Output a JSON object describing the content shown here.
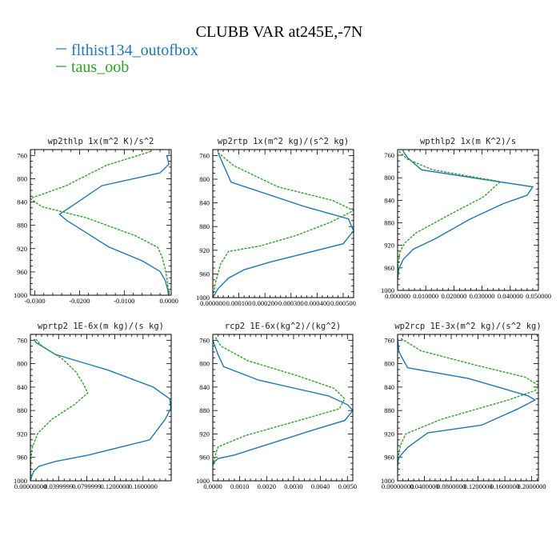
{
  "header": {
    "title": "CLUBB VAR at245E,-7N",
    "legend": [
      {
        "label": "flthist134_outofbox",
        "color": "#1f77b4",
        "dash": false
      },
      {
        "label": "taus_oob",
        "color": "#2ca02c",
        "dash": true
      }
    ]
  },
  "chart_data": [
    {
      "type": "line",
      "title": "wp2thlp  1x(m^2 K)/s^2",
      "xlim": [
        -0.031,
        0.0005
      ],
      "ylim": [
        1000,
        750
      ],
      "xticks": [
        -0.03,
        -0.02,
        -0.01,
        0.0
      ],
      "xticklabels": [
        "-0.0300",
        "-0.0200",
        "-0.0100",
        "0.0000"
      ],
      "yticks": [
        760,
        800,
        840,
        880,
        920,
        960,
        1000
      ],
      "yticklabels": [
        "760",
        "800",
        "840",
        "880",
        "920",
        "960",
        "1000"
      ],
      "series": [
        {
          "name": "flthist134_outofbox",
          "x": [
            -0.0005,
            0.0,
            -0.002,
            -0.015,
            -0.0225,
            -0.0245,
            -0.0228,
            -0.0205,
            -0.0135,
            -0.006,
            -0.002,
            -0.0008,
            -0.0003,
            -0.0001
          ],
          "y": [
            760,
            775,
            790,
            812,
            851,
            861,
            872,
            883,
            917,
            941,
            959,
            975,
            990,
            1000
          ]
        },
        {
          "name": "taus_oob",
          "x": [
            -0.004,
            -0.014,
            -0.023,
            -0.031,
            -0.0285,
            -0.0185,
            -0.0075,
            -0.0025,
            -0.0015,
            -0.0008,
            -0.0003,
            -0.0001
          ],
          "y": [
            753,
            777,
            812,
            834,
            848,
            867,
            898,
            918,
            935,
            956,
            978,
            1000
          ]
        }
      ]
    },
    {
      "type": "line",
      "title": "wp2rtp  1x(m^2 kg)/(s^2 kg)",
      "xlim": [
        0.0,
        0.00054
      ],
      "ylim": [
        1000,
        750
      ],
      "xticks": [
        0.0,
        0.0001,
        0.0002,
        0.0003,
        0.0004,
        0.0005
      ],
      "xticklabels": [
        "0.000000",
        "0.000100",
        "0.000200",
        "0.000300",
        "0.000400",
        "0.000500"
      ],
      "yticks": [
        760,
        800,
        840,
        880,
        920,
        960,
        1000
      ],
      "yticklabels": [
        "760",
        "800",
        "840",
        "880",
        "920",
        "960",
        "1000"
      ],
      "series": [
        {
          "name": "flthist134_outofbox",
          "x": [
            2e-05,
            4e-05,
            7e-05,
            0.00035,
            0.00052,
            0.00054,
            0.0005,
            0.00022,
            0.00012,
            6e-05,
            2e-05,
            0.0
          ],
          "y": [
            755,
            775,
            805,
            846,
            867,
            887,
            909,
            940,
            953,
            967,
            985,
            1000
          ]
        },
        {
          "name": "taus_oob",
          "x": [
            2e-05,
            8e-05,
            0.00025,
            0.00046,
            0.00054,
            0.00045,
            0.00032,
            0.00018,
            6e-05,
            3e-05,
            1e-05,
            0.0
          ],
          "y": [
            755,
            777,
            813,
            836,
            853,
            873,
            895,
            913,
            922,
            943,
            975,
            1000
          ]
        }
      ]
    },
    {
      "type": "line",
      "title": "wpthlp2  1x(m K^2)/s",
      "xlim": [
        0.0,
        0.05
      ],
      "ylim": [
        1000,
        750
      ],
      "xticks": [
        0.0,
        0.01,
        0.02,
        0.03,
        0.04,
        0.05
      ],
      "xticklabels": [
        "0.000000",
        "0.010000",
        "0.020000",
        "0.030000",
        "0.040000",
        "0.050000"
      ],
      "yticks": [
        760,
        800,
        840,
        880,
        920,
        960,
        1000
      ],
      "yticklabels": [
        "760",
        "800",
        "840",
        "880",
        "920",
        "960",
        "1000"
      ],
      "series": [
        {
          "name": "flthist134_outofbox",
          "x": [
            0.002,
            0.0035,
            0.0085,
            0.0305,
            0.048,
            0.046,
            0.0375,
            0.0255,
            0.0135,
            0.0055,
            0.002,
            0.0005,
            0.0
          ],
          "y": [
            753,
            764,
            786,
            803,
            816,
            831,
            846,
            874,
            908,
            927,
            945,
            961,
            980
          ]
        },
        {
          "name": "taus_oob",
          "x": [
            0.0005,
            0.0035,
            0.0125,
            0.0365,
            0.0305,
            0.0175,
            0.0065,
            0.0025,
            0.0008,
            0.0002,
            0.0
          ],
          "y": [
            753,
            767,
            786,
            807,
            834,
            868,
            898,
            916,
            932,
            955,
            980
          ]
        }
      ]
    },
    {
      "type": "line",
      "title": "wprtp2  1E-6x(m kg)/(s kg)",
      "xlim": [
        0.0,
        0.2
      ],
      "ylim": [
        1000,
        750
      ],
      "xticks": [
        0.0,
        0.04,
        0.08,
        0.12,
        0.16
      ],
      "xticklabels": [
        "0.00000000",
        "0.0399999",
        "0.0799999",
        "0.1200000",
        "0.1600000"
      ],
      "yticks": [
        760,
        800,
        840,
        880,
        920,
        960,
        1000
      ],
      "yticklabels": [
        "760",
        "800",
        "840",
        "880",
        "920",
        "960",
        "1000"
      ],
      "series": [
        {
          "name": "flthist134_outofbox",
          "x": [
            0.005,
            0.008,
            0.035,
            0.1105,
            0.1745,
            0.198,
            0.1995,
            0.1915,
            0.1695,
            0.0825,
            0.0355,
            0.0125,
            0.005,
            0.002,
            0.0
          ],
          "y": [
            758,
            764,
            784,
            811,
            840,
            860,
            876,
            895,
            930,
            956,
            967,
            975,
            983,
            992,
            1000
          ]
        },
        {
          "name": "taus_oob",
          "x": [
            0.0075,
            0.0165,
            0.0455,
            0.0645,
            0.0745,
            0.0815,
            0.0625,
            0.0305,
            0.0105,
            0.0025,
            0.0005,
            0.0
          ],
          "y": [
            758,
            770,
            792,
            814,
            833,
            850,
            870,
            895,
            919,
            944,
            966,
            1000
          ]
        }
      ]
    },
    {
      "type": "line",
      "title": "rcp2  1E-6x(kg^2)/(kg^2)",
      "xlim": [
        0.0,
        0.0052
      ],
      "ylim": [
        1000,
        750
      ],
      "xticks": [
        0.0,
        0.001,
        0.002,
        0.003,
        0.004,
        0.005
      ],
      "xticklabels": [
        "0.0000",
        "0.0010",
        "0.0020",
        "0.0030",
        "0.0040",
        "0.0050"
      ],
      "yticks": [
        760,
        800,
        840,
        880,
        920,
        960,
        1000
      ],
      "yticklabels": [
        "760",
        "800",
        "840",
        "880",
        "920",
        "960",
        "1000"
      ],
      "series": [
        {
          "name": "flthist134_outofbox",
          "x": [
            0.0,
            0.0002,
            0.0004,
            0.0017,
            0.0043,
            0.005,
            0.0052,
            0.0049,
            0.0036,
            0.0008,
            0.0002,
            0.0
          ],
          "y": [
            760,
            785,
            805,
            828,
            855,
            870,
            880,
            897,
            915,
            956,
            962,
            970
          ]
        },
        {
          "name": "taus_oob",
          "x": [
            0.0001,
            0.0003,
            0.0013,
            0.0031,
            0.0045,
            0.0049,
            0.0047,
            0.0035,
            0.0012,
            0.0002,
            0.0001,
            0.0
          ],
          "y": [
            755,
            770,
            795,
            820,
            842,
            860,
            877,
            893,
            923,
            942,
            955,
            975
          ]
        }
      ]
    },
    {
      "type": "line",
      "title": "wp2rcp  1E-3x(m^2 kg)/(s^2 kg)",
      "xlim": [
        0.0,
        0.21
      ],
      "ylim": [
        1000,
        750
      ],
      "xticks": [
        0.0,
        0.04,
        0.08,
        0.12,
        0.16,
        0.2
      ],
      "xticklabels": [
        "0.00000000",
        "0.0400000",
        "0.0800000",
        "0.1200000",
        "0.1600000",
        "0.2000000"
      ],
      "yticks": [
        760,
        800,
        840,
        880,
        920,
        960,
        1000
      ],
      "yticklabels": [
        "760",
        "800",
        "840",
        "880",
        "920",
        "960",
        "1000"
      ],
      "series": [
        {
          "name": "flthist134_outofbox",
          "x": [
            0.0,
            0.002,
            0.015,
            0.105,
            0.195,
            0.205,
            0.178,
            0.125,
            0.045,
            0.015,
            0.002,
            0.0
          ],
          "y": [
            755,
            780,
            807,
            825,
            855,
            862,
            878,
            905,
            918,
            943,
            960,
            970
          ]
        },
        {
          "name": "taus_oob",
          "x": [
            0.005,
            0.035,
            0.115,
            0.19,
            0.21,
            0.205,
            0.165,
            0.065,
            0.012,
            0.004,
            0.001,
            0.0
          ],
          "y": [
            757,
            778,
            802,
            823,
            837,
            846,
            862,
            895,
            920,
            940,
            960,
            985
          ]
        }
      ]
    }
  ]
}
